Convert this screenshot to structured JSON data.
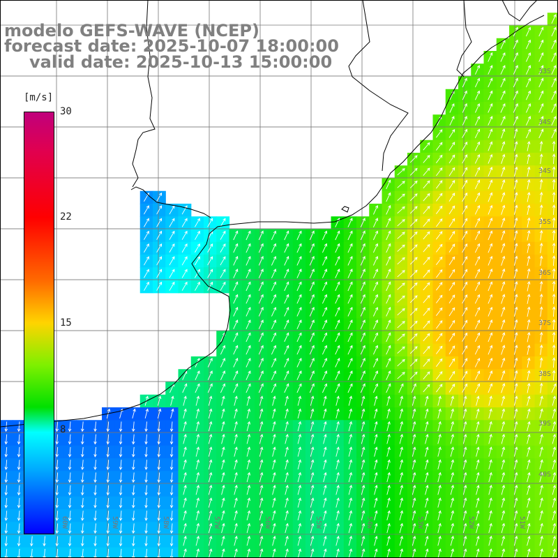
{
  "title": {
    "line1": "modelo GEFS-WAVE (NCEP)",
    "line2": "forecast date: 2025-10-07 18:00:00",
    "line3": "valid date: 2025-10-13 15:00:00"
  },
  "colorbar": {
    "unit": "[m/s]",
    "ticks": [
      {
        "label": "30",
        "value": 30
      },
      {
        "label": "22",
        "value": 22
      },
      {
        "label": "15",
        "value": 15
      },
      {
        "label": "8",
        "value": 8
      }
    ],
    "min": 0,
    "max": 30,
    "colors": [
      "#0000ff",
      "#00a8ff",
      "#00ffff",
      "#00e000",
      "#7ef000",
      "#ffd400",
      "#ff6a00",
      "#ff0000",
      "#e00050",
      "#c0007c"
    ]
  },
  "grid": {
    "lat_labels": [
      "33S",
      "34S",
      "35S",
      "36S",
      "37S",
      "38S",
      "39S",
      "40S"
    ],
    "lon_labels": [
      "60W",
      "59W",
      "58W",
      "57W",
      "56W",
      "55W",
      "54W",
      "53W",
      "52W",
      "51W"
    ]
  },
  "colors": {
    "land": "#ffffff",
    "grid_line": "#777777",
    "coast": "#000000",
    "arrow": "#ffffff",
    "title": "#808080"
  },
  "field_description_words": [
    "wind-speed",
    "wind-direction-arrows"
  ]
}
